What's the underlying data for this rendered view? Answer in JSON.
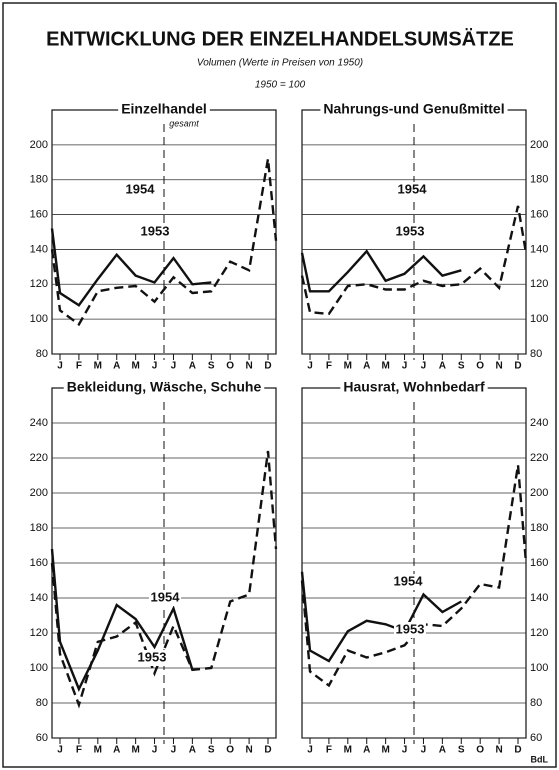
{
  "title": "ENTWICKLUNG DER EINZELHANDELSUMSÄTZE",
  "subtitle": "Volumen (Werte in Preisen von 1950)",
  "note": "1950 = 100",
  "source": "BdL",
  "chart_data": [
    {
      "type": "line",
      "title": "Einzelhandel",
      "subtitle": "gesamt",
      "categories": [
        null,
        "J",
        "F",
        "M",
        "A",
        "M",
        "J",
        "J",
        "A",
        "S",
        "O",
        "N",
        "D",
        null
      ],
      "series": [
        {
          "name": "1954",
          "color": "#111111",
          "dashed": false,
          "values": [
            152,
            115,
            108,
            123,
            137,
            125,
            121,
            135,
            120,
            121,
            null,
            null,
            null,
            null
          ]
        },
        {
          "name": "1953",
          "color": "#111111",
          "dashed": true,
          "values": [
            140,
            105,
            97,
            116,
            118,
            119,
            110,
            124,
            115,
            116,
            133,
            128,
            192,
            145
          ]
        }
      ],
      "ylim": [
        80,
        220
      ],
      "yticks": [
        80,
        100,
        120,
        140,
        160,
        180,
        200
      ],
      "y_axis_side": "left",
      "grid": true
    },
    {
      "type": "line",
      "title": "Nahrungs-und Genußmittel",
      "categories": [
        null,
        "J",
        "F",
        "M",
        "A",
        "M",
        "J",
        "J",
        "A",
        "S",
        "O",
        "N",
        "D",
        null
      ],
      "series": [
        {
          "name": "1954",
          "color": "#111111",
          "dashed": false,
          "values": [
            138,
            116,
            116,
            127,
            139,
            122,
            126,
            136,
            125,
            128,
            null,
            null,
            null,
            null
          ]
        },
        {
          "name": "1953",
          "color": "#111111",
          "dashed": true,
          "values": [
            125,
            104,
            103,
            119,
            120,
            117,
            117,
            122,
            119,
            120,
            129,
            118,
            165,
            138
          ]
        }
      ],
      "ylim": [
        80,
        220
      ],
      "yticks": [
        80,
        100,
        120,
        140,
        160,
        180,
        200
      ],
      "y_axis_side": "right",
      "grid": true
    },
    {
      "type": "line",
      "title": "Bekleidung, Wäsche, Schuhe",
      "categories": [
        null,
        "J",
        "F",
        "M",
        "A",
        "M",
        "J",
        "J",
        "A",
        "S",
        "O",
        "N",
        "D",
        null
      ],
      "series": [
        {
          "name": "1954",
          "color": "#111111",
          "dashed": false,
          "values": [
            168,
            115,
            88,
            110,
            136,
            128,
            112,
            134,
            99,
            null,
            null,
            null,
            null,
            null
          ]
        },
        {
          "name": "1953",
          "color": "#111111",
          "dashed": true,
          "values": [
            160,
            108,
            79,
            115,
            118,
            126,
            97,
            124,
            99,
            100,
            138,
            142,
            224,
            168
          ]
        }
      ],
      "ylim": [
        60,
        260
      ],
      "yticks": [
        60,
        80,
        100,
        120,
        140,
        160,
        180,
        200,
        220,
        240
      ],
      "y_axis_side": "left",
      "grid": true
    },
    {
      "type": "line",
      "title": "Hausrat, Wohnbedarf",
      "categories": [
        null,
        "J",
        "F",
        "M",
        "A",
        "M",
        "J",
        "J",
        "A",
        "S",
        "O",
        "N",
        "D",
        null
      ],
      "series": [
        {
          "name": "1954",
          "color": "#111111",
          "dashed": false,
          "values": [
            155,
            110,
            104,
            121,
            127,
            125,
            121,
            142,
            132,
            138,
            null,
            null,
            null,
            null
          ]
        },
        {
          "name": "1953",
          "color": "#111111",
          "dashed": true,
          "values": [
            150,
            98,
            90,
            110,
            106,
            109,
            113,
            125,
            124,
            134,
            148,
            146,
            216,
            160
          ]
        }
      ],
      "ylim": [
        60,
        260
      ],
      "yticks": [
        60,
        80,
        100,
        120,
        140,
        160,
        180,
        200,
        220,
        240
      ],
      "y_axis_side": "right",
      "grid": true
    }
  ]
}
